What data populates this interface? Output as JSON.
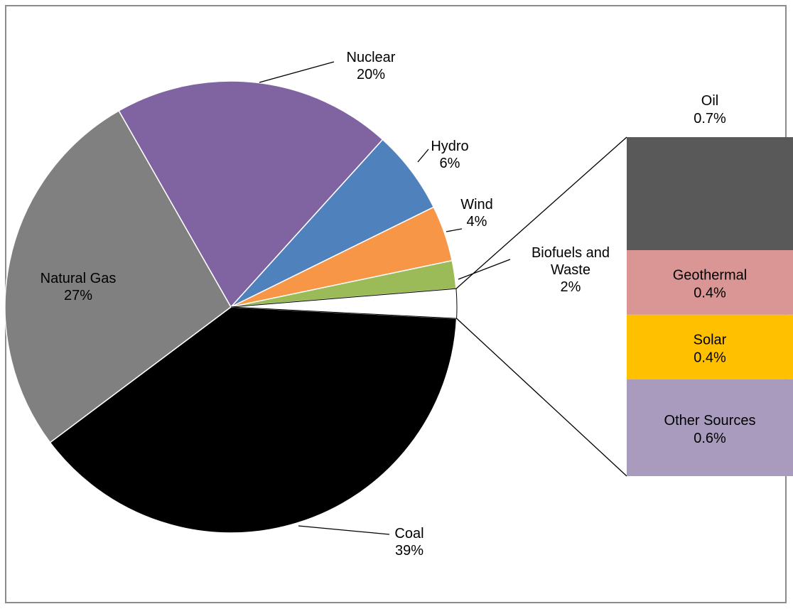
{
  "chart_data": {
    "type": "pie",
    "subtype": "bar-of-pie",
    "title": "",
    "slices": [
      {
        "label": "Coal",
        "value": 39,
        "display": "39%",
        "color": "#000000"
      },
      {
        "label": "Natural Gas",
        "value": 27,
        "display": "27%",
        "color": "#808080"
      },
      {
        "label": "Nuclear",
        "value": 20,
        "display": "20%",
        "color": "#8064A2"
      },
      {
        "label": "Hydro",
        "value": 6,
        "display": "6%",
        "color": "#4F81BD"
      },
      {
        "label": "Wind",
        "value": 4,
        "display": "4%",
        "color": "#F79646"
      },
      {
        "label": "Biofuels and Waste",
        "value": 2,
        "display": "2%",
        "color": "#9BBB59"
      },
      {
        "label": "Other",
        "value": 2.1,
        "display": "",
        "color": "#FFFFFF"
      }
    ],
    "breakout": [
      {
        "label": "Oil",
        "value": 0.7,
        "display": "0.7%",
        "color": "#595959"
      },
      {
        "label": "Geothermal",
        "value": 0.4,
        "display": "0.4%",
        "color": "#D99694"
      },
      {
        "label": "Solar",
        "value": 0.4,
        "display": "0.4%",
        "color": "#FFC000"
      },
      {
        "label": "Other Sources",
        "value": 0.6,
        "display": "0.6%",
        "color": "#A99BBD"
      }
    ]
  }
}
